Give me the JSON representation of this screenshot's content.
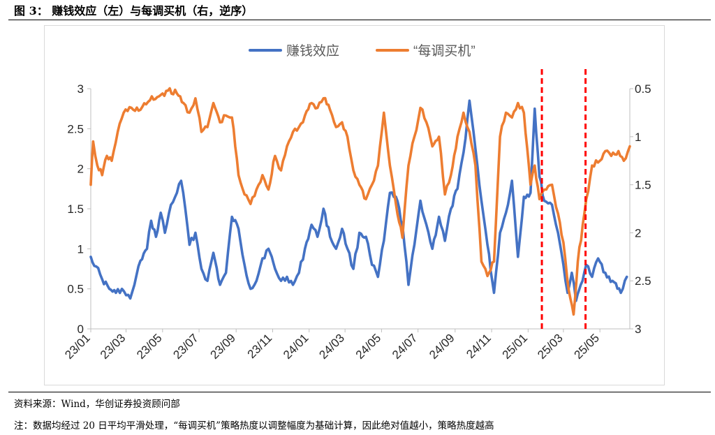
{
  "figure": {
    "title": "图 3：  赚钱效应（左）与每调买机（右，逆序）"
  },
  "footer": {
    "source": "资料来源：Wind，华创证券投资顾问部",
    "note": "注：数据均经过 20 日平均平滑处理，“每调买机”策略热度以调整幅度为基础计算，因此绝对值越小，策略热度越高"
  },
  "chart_data": {
    "type": "line",
    "title": "",
    "x_axis": {
      "tick_labels": [
        "23/01",
        "23/03",
        "23/05",
        "23/07",
        "23/09",
        "23/11",
        "24/01",
        "24/03",
        "24/05",
        "24/07",
        "24/09",
        "24/11",
        "25/01",
        "25/03",
        "25/05"
      ],
      "range": [
        "2023-01-01",
        "2025-06-20"
      ]
    },
    "y_left": {
      "range": [
        0,
        3
      ],
      "ticks": [
        0,
        0.5,
        1,
        1.5,
        2,
        2.5,
        3
      ],
      "tick_labels": [
        "0",
        "0.5",
        "1",
        "1.5",
        "2",
        "2.5",
        "3"
      ]
    },
    "y_right": {
      "range": [
        0.5,
        3
      ],
      "reversed": true,
      "ticks": [
        0.5,
        1,
        1.5,
        2,
        2.5,
        3
      ],
      "tick_labels": [
        "0.5",
        "1",
        "1.5",
        "2",
        "2.5",
        "3"
      ]
    },
    "grid": false,
    "legend_position": "top-center",
    "series": [
      {
        "name": "赚钱效应",
        "axis": "left",
        "color": "#4472C4",
        "points": [
          [
            "2023-01-01",
            0.9
          ],
          [
            "2023-01-10",
            0.78
          ],
          [
            "2023-01-20",
            0.62
          ],
          [
            "2023-02-01",
            0.5
          ],
          [
            "2023-02-12",
            0.45
          ],
          [
            "2023-02-22",
            0.5
          ],
          [
            "2023-03-01",
            0.42
          ],
          [
            "2023-03-08",
            0.38
          ],
          [
            "2023-03-15",
            0.55
          ],
          [
            "2023-03-25",
            0.85
          ],
          [
            "2023-04-05",
            1.0
          ],
          [
            "2023-04-12",
            1.35
          ],
          [
            "2023-04-20",
            1.15
          ],
          [
            "2023-04-28",
            1.45
          ],
          [
            "2023-05-05",
            1.2
          ],
          [
            "2023-05-15",
            1.55
          ],
          [
            "2023-05-25",
            1.7
          ],
          [
            "2023-06-01",
            1.85
          ],
          [
            "2023-06-08",
            1.5
          ],
          [
            "2023-06-15",
            1.05
          ],
          [
            "2023-06-25",
            1.2
          ],
          [
            "2023-07-05",
            0.75
          ],
          [
            "2023-07-15",
            0.6
          ],
          [
            "2023-07-25",
            0.95
          ],
          [
            "2023-08-05",
            0.55
          ],
          [
            "2023-08-15",
            0.7
          ],
          [
            "2023-08-25",
            1.4
          ],
          [
            "2023-09-05",
            1.25
          ],
          [
            "2023-09-15",
            0.8
          ],
          [
            "2023-09-25",
            0.5
          ],
          [
            "2023-10-05",
            0.6
          ],
          [
            "2023-10-15",
            0.88
          ],
          [
            "2023-10-25",
            1.0
          ],
          [
            "2023-11-05",
            0.75
          ],
          [
            "2023-11-15",
            0.6
          ],
          [
            "2023-11-25",
            0.65
          ],
          [
            "2023-12-05",
            0.55
          ],
          [
            "2023-12-15",
            0.7
          ],
          [
            "2023-12-25",
            1.0
          ],
          [
            "2024-01-05",
            1.3
          ],
          [
            "2024-01-15",
            1.15
          ],
          [
            "2024-01-25",
            1.5
          ],
          [
            "2024-02-05",
            1.15
          ],
          [
            "2024-02-15",
            1.0
          ],
          [
            "2024-02-25",
            1.25
          ],
          [
            "2024-03-05",
            1.0
          ],
          [
            "2024-03-15",
            0.75
          ],
          [
            "2024-03-25",
            1.2
          ],
          [
            "2024-04-05",
            1.15
          ],
          [
            "2024-04-15",
            0.8
          ],
          [
            "2024-04-25",
            0.65
          ],
          [
            "2024-05-05",
            1.1
          ],
          [
            "2024-05-15",
            1.7
          ],
          [
            "2024-05-25",
            1.65
          ],
          [
            "2024-06-05",
            1.3
          ],
          [
            "2024-06-15",
            0.55
          ],
          [
            "2024-06-25",
            1.05
          ],
          [
            "2024-07-05",
            1.6
          ],
          [
            "2024-07-15",
            1.3
          ],
          [
            "2024-07-25",
            1.0
          ],
          [
            "2024-08-05",
            1.4
          ],
          [
            "2024-08-15",
            1.1
          ],
          [
            "2024-08-25",
            1.5
          ],
          [
            "2024-09-05",
            1.75
          ],
          [
            "2024-09-15",
            2.2
          ],
          [
            "2024-09-25",
            2.85
          ],
          [
            "2024-10-05",
            2.25
          ],
          [
            "2024-10-15",
            1.6
          ],
          [
            "2024-10-25",
            1.05
          ],
          [
            "2024-11-05",
            0.45
          ],
          [
            "2024-11-15",
            1.2
          ],
          [
            "2024-11-25",
            1.45
          ],
          [
            "2024-12-05",
            1.85
          ],
          [
            "2024-12-15",
            0.9
          ],
          [
            "2024-12-25",
            1.65
          ],
          [
            "2025-01-05",
            1.7
          ],
          [
            "2025-01-12",
            2.75
          ],
          [
            "2025-01-20",
            1.9
          ],
          [
            "2025-01-28",
            1.6
          ],
          [
            "2025-02-10",
            1.55
          ],
          [
            "2025-02-20",
            1.2
          ],
          [
            "2025-03-01",
            0.8
          ],
          [
            "2025-03-08",
            0.45
          ],
          [
            "2025-03-15",
            0.7
          ],
          [
            "2025-03-22",
            0.35
          ],
          [
            "2025-03-30",
            0.55
          ],
          [
            "2025-04-08",
            0.8
          ],
          [
            "2025-04-18",
            0.65
          ],
          [
            "2025-04-28",
            0.88
          ],
          [
            "2025-05-10",
            0.7
          ],
          [
            "2025-05-22",
            0.6
          ],
          [
            "2025-06-05",
            0.45
          ],
          [
            "2025-06-15",
            0.65
          ]
        ]
      },
      {
        "name": "“每调买机”",
        "axis": "right",
        "color": "#ED7D31",
        "points": [
          [
            "2023-01-01",
            1.5
          ],
          [
            "2023-01-05",
            1.05
          ],
          [
            "2023-01-12",
            1.3
          ],
          [
            "2023-01-20",
            1.4
          ],
          [
            "2023-01-28",
            1.2
          ],
          [
            "2023-02-05",
            1.25
          ],
          [
            "2023-02-15",
            0.95
          ],
          [
            "2023-02-25",
            0.75
          ],
          [
            "2023-03-10",
            0.7
          ],
          [
            "2023-03-25",
            0.72
          ],
          [
            "2023-04-10",
            0.62
          ],
          [
            "2023-04-25",
            0.58
          ],
          [
            "2023-05-10",
            0.52
          ],
          [
            "2023-05-25",
            0.55
          ],
          [
            "2023-06-05",
            0.65
          ],
          [
            "2023-06-15",
            0.75
          ],
          [
            "2023-06-25",
            0.6
          ],
          [
            "2023-07-05",
            0.95
          ],
          [
            "2023-07-15",
            0.9
          ],
          [
            "2023-07-25",
            0.65
          ],
          [
            "2023-08-05",
            0.85
          ],
          [
            "2023-08-15",
            0.78
          ],
          [
            "2023-08-25",
            0.8
          ],
          [
            "2023-09-05",
            1.4
          ],
          [
            "2023-09-15",
            1.6
          ],
          [
            "2023-09-25",
            1.7
          ],
          [
            "2023-10-05",
            1.55
          ],
          [
            "2023-10-15",
            1.4
          ],
          [
            "2023-10-25",
            1.55
          ],
          [
            "2023-11-05",
            1.2
          ],
          [
            "2023-11-15",
            1.35
          ],
          [
            "2023-11-25",
            1.1
          ],
          [
            "2023-12-05",
            0.95
          ],
          [
            "2023-12-15",
            0.9
          ],
          [
            "2023-12-25",
            0.78
          ],
          [
            "2024-01-05",
            0.65
          ],
          [
            "2024-01-15",
            0.7
          ],
          [
            "2024-01-25",
            0.6
          ],
          [
            "2024-02-05",
            0.72
          ],
          [
            "2024-02-15",
            0.9
          ],
          [
            "2024-02-25",
            0.85
          ],
          [
            "2024-03-05",
            1.0
          ],
          [
            "2024-03-15",
            1.35
          ],
          [
            "2024-03-25",
            1.5
          ],
          [
            "2024-04-05",
            1.65
          ],
          [
            "2024-04-15",
            1.5
          ],
          [
            "2024-04-25",
            1.3
          ],
          [
            "2024-05-05",
            0.75
          ],
          [
            "2024-05-15",
            1.3
          ],
          [
            "2024-05-25",
            1.7
          ],
          [
            "2024-06-05",
            2.05
          ],
          [
            "2024-06-15",
            1.3
          ],
          [
            "2024-06-25",
            1.0
          ],
          [
            "2024-07-05",
            0.7
          ],
          [
            "2024-07-15",
            0.85
          ],
          [
            "2024-07-25",
            1.1
          ],
          [
            "2024-08-05",
            1.0
          ],
          [
            "2024-08-15",
            1.6
          ],
          [
            "2024-08-25",
            1.4
          ],
          [
            "2024-09-05",
            1.0
          ],
          [
            "2024-09-15",
            0.75
          ],
          [
            "2024-09-25",
            0.95
          ],
          [
            "2024-10-05",
            1.3
          ],
          [
            "2024-10-15",
            2.3
          ],
          [
            "2024-10-25",
            2.45
          ],
          [
            "2024-11-05",
            2.3
          ],
          [
            "2024-11-15",
            1.0
          ],
          [
            "2024-11-25",
            0.75
          ],
          [
            "2024-12-05",
            0.8
          ],
          [
            "2024-12-15",
            0.65
          ],
          [
            "2024-12-25",
            0.75
          ],
          [
            "2025-01-05",
            1.5
          ],
          [
            "2025-01-12",
            1.3
          ],
          [
            "2025-01-20",
            1.65
          ],
          [
            "2025-01-28",
            1.55
          ],
          [
            "2025-02-10",
            1.5
          ],
          [
            "2025-02-20",
            1.8
          ],
          [
            "2025-03-01",
            2.1
          ],
          [
            "2025-03-10",
            2.6
          ],
          [
            "2025-03-18",
            2.85
          ],
          [
            "2025-03-25",
            2.3
          ],
          [
            "2025-04-05",
            1.8
          ],
          [
            "2025-04-18",
            1.3
          ],
          [
            "2025-05-01",
            1.25
          ],
          [
            "2025-05-10",
            1.15
          ],
          [
            "2025-05-20",
            1.2
          ],
          [
            "2025-06-01",
            1.15
          ],
          [
            "2025-06-10",
            1.25
          ],
          [
            "2025-06-20",
            1.1
          ]
        ]
      }
    ],
    "vertical_markers": [
      {
        "date": "2025-01-24",
        "color": "#FF0000",
        "style": "dashed"
      },
      {
        "date": "2025-04-07",
        "color": "#FF0000",
        "style": "dashed"
      }
    ]
  }
}
